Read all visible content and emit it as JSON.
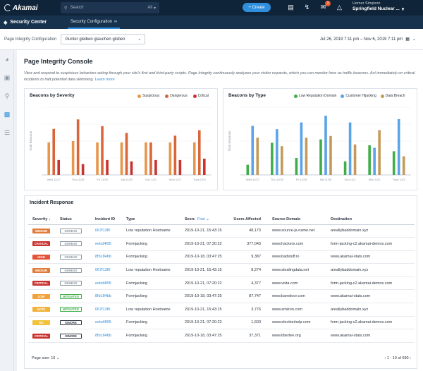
{
  "topbar": {
    "logo": "Akamai",
    "search_placeholder": "Search",
    "search_scope": "All",
    "create_label": "+ Create",
    "notifications_count": "3",
    "user_name": "Homer Simpson",
    "account_name": "Springfield Nuclear ..."
  },
  "subbar": {
    "app_title": "Security Center",
    "tab_label": "Security Configuration"
  },
  "filters": {
    "config_label": "Page Integrity Configuration",
    "config_value": "Gunter gleiben glauchen globen",
    "date_range": "Jul 26, 2019 7:11 pm – Nov 6, 2019 7:11 pm"
  },
  "page": {
    "title": "Page Integrity Console",
    "description": "View and respond to suspicious behaviors acting through your site's first and third-party scripts. Page Integrity continuously analyzes your visitor requests, which you can monitor here as traffic beacons. Act immediately on critical incidents to halt potential data skimming.",
    "learn_more": "Learn more"
  },
  "colors": {
    "suspicious": "#e8964a",
    "dangerous": "#d9663a",
    "critical": "#c8322f",
    "low_reputation": "#3fae49",
    "customer_hijacking": "#5aa3e8",
    "data_breach": "#c49a5a"
  },
  "chart_data": [
    {
      "type": "bar",
      "title": "Beacons by Severity",
      "ylabel": "Total Beacons",
      "categories": [
        "Wed 11/27",
        "Thu 11/28",
        "Fri 11/29",
        "Sat 11/30",
        "Sun 12/1",
        "Mon 12/2",
        "Tues 12/3"
      ],
      "series": [
        {
          "name": "Suspicious",
          "values": [
            48,
            50,
            48,
            48,
            48,
            48,
            48
          ]
        },
        {
          "name": "Dangerous",
          "values": [
            68,
            82,
            72,
            62,
            48,
            58,
            66
          ]
        },
        {
          "name": "Critical",
          "values": [
            22,
            16,
            22,
            20,
            22,
            22,
            24
          ]
        }
      ],
      "ylim": [
        0,
        100
      ]
    },
    {
      "type": "bar",
      "title": "Beacons by Type",
      "ylabel": "Total Sessions",
      "categories": [
        "Wed 11/27",
        "Thu 11/28",
        "Fri 11/29",
        "Sat 11/30",
        "Sun 12/1",
        "Mon 12/2",
        "Tues 12/3"
      ],
      "series": [
        {
          "name": "Low Reputation Domain",
          "values": [
            12,
            38,
            20,
            42,
            16,
            35,
            28
          ]
        },
        {
          "name": "Customer Hijacking",
          "values": [
            58,
            54,
            62,
            70,
            62,
            32,
            66
          ]
        },
        {
          "name": "Data Breach",
          "values": [
            44,
            34,
            44,
            46,
            36,
            53,
            22
          ]
        }
      ],
      "ylim": [
        0,
        80
      ]
    }
  ],
  "incidents": {
    "title": "Incident Response",
    "columns": {
      "severity": "Severity",
      "status": "Status",
      "incident_id": "Incident ID",
      "type": "Type",
      "seen": "Seen:",
      "seen_sort": "First",
      "users": "Users Affected",
      "source": "Source Domain",
      "destination": "Destination"
    },
    "rows": [
      {
        "severity": "MEDIUM",
        "sev_color": "#e07b39",
        "status": "UNHEAD",
        "stat_color": "#8d97a2",
        "id": "067f13f6",
        "type": "Low reputation Hostname",
        "seen": "2019-10-21, 15:43:15",
        "users": "48,173",
        "source": "www.source-js-name.net",
        "dest": "areallybaddomain.xyz"
      },
      {
        "severity": "CRITICAL",
        "sev_color": "#c8322f",
        "status": "UNHEAD",
        "stat_color": "#8d97a2",
        "id": "eebd4f95",
        "type": "Formjacking",
        "seen": "2019-10-21, 07:20:22",
        "users": "377,043",
        "source": "www.hackers.com",
        "dest": "form-jacking-c2.akamai-demos.com"
      },
      {
        "severity": "HIGH",
        "sev_color": "#e2533a",
        "status": "UNHEAD",
        "stat_color": "#8d97a2",
        "id": "8fb184bb",
        "type": "Formjacking",
        "seen": "2019-10-18, 03:47:25",
        "users": "9,387",
        "source": "www.badstuff.io",
        "dest": "www.akamai-stats.com"
      },
      {
        "severity": "MEDIUM",
        "sev_color": "#e07b39",
        "status": "UNHEAD",
        "stat_color": "#8d97a2",
        "id": "067f13f6",
        "type": "Low reputation Hostname",
        "seen": "2019-10-21, 15:43:15",
        "users": "8,274",
        "source": "www.stealingdata.net",
        "dest": "areallybaddomain.xyz"
      },
      {
        "severity": "CRITICAL",
        "sev_color": "#c8322f",
        "status": "UNHEAD",
        "stat_color": "#8d97a2",
        "id": "eebd4f95",
        "type": "Formjacking",
        "seen": "2019-10-21, 07:20:22",
        "users": "4,377",
        "source": "www.vista.com",
        "dest": "form-jacking-c2.akamai-demos.com"
      },
      {
        "severity": "LOW",
        "sev_color": "#f0a23b",
        "status": "MITIGATED",
        "stat_color": "#3fae49",
        "id": "8fb184bb",
        "type": "Formjacking",
        "seen": "2019-10-18, 03:47:25",
        "users": "87,747",
        "source": "www.barndoor.com",
        "dest": "www.akamai-stats.com"
      },
      {
        "severity": "NOTE",
        "sev_color": "#f0b23b",
        "status": "MITIGATED",
        "stat_color": "#3fae49",
        "id": "067f13f6",
        "type": "Low reputation Hostname",
        "seen": "2019-10-21, 15:43:15",
        "users": "3,776",
        "source": "www.amizon.com",
        "dest": "areallybaddomain.xyz"
      },
      {
        "severity": "NA",
        "sev_color": "#f2c23b",
        "status": "IGNORE",
        "stat_color": "#2c3440",
        "id": "eebd4f95",
        "type": "Formjacking",
        "seen": "2019-10-21, 07:20:22",
        "users": "1,603",
        "source": "www.electionhelp.com",
        "dest": "form-jacking-c2.akamai-demos.com"
      },
      {
        "severity": "CRITICAL",
        "sev_color": "#c8322f",
        "status": "IGNORE",
        "stat_color": "#2c3440",
        "id": "8fb184bb",
        "type": "Formjacking",
        "seen": "2019-10-18, 03:47:25",
        "users": "37,371",
        "source": "www.libertee.org",
        "dest": "www.akamai-stats.com"
      }
    ],
    "page_size_label": "Page size:",
    "page_size_value": "10",
    "pagination": "1 - 10 of 690"
  }
}
